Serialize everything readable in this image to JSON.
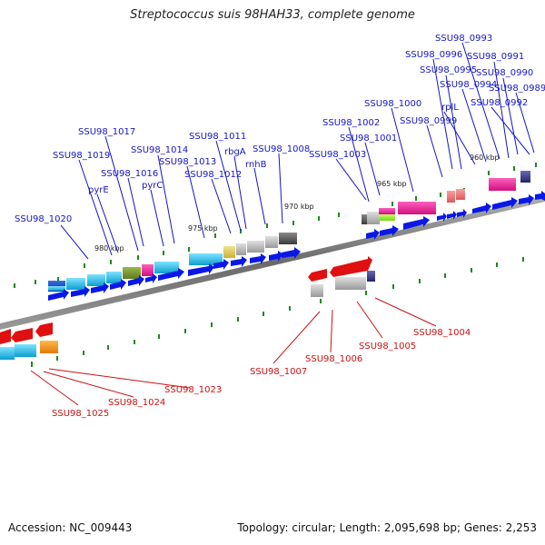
{
  "title": "Streptococcus suis 98HAH33, complete genome",
  "accession": "Accession: NC_009443",
  "stats": "Topology: circular; Length: 2,095,698 bp; Genes: 2,253",
  "colors": {
    "forward_label": "#1515c8",
    "reverse_label": "#cc1111",
    "forward_arrow": "#0a18e6",
    "reverse_arrow": "#e01010",
    "backbone": "#777777",
    "tick": "#1a8a1a"
  },
  "kbp_labels": [
    "980 kbp",
    "975 kbp",
    "970 kbp",
    "965 kbp",
    "960 kbp"
  ],
  "forward_genes": [
    "SSU98_1020",
    "SSU98_1019",
    "pyrE",
    "SSU98_1017",
    "SSU98_1016",
    "SSU98_1014",
    "pyrC",
    "SSU98_1013",
    "SSU98_1012",
    "SSU98_1011",
    "rbgA",
    "rnhB",
    "SSU98_1008",
    "SSU98_1003",
    "SSU98_1002",
    "SSU98_1001",
    "SSU98_1000",
    "SSU98_0999",
    "SSU98_0996",
    "SSU98_0995",
    "rplL",
    "SSU98_0994",
    "SSU98_0993",
    "SSU98_0991",
    "SSU98_0990",
    "SSU98_0989",
    "SSU98_0992"
  ],
  "reverse_genes": [
    "SSU98_1025",
    "SSU98_1024",
    "SSU98_1023",
    "SSU98_1007",
    "SSU98_1006",
    "SSU98_1005",
    "SSU98_1004"
  ]
}
